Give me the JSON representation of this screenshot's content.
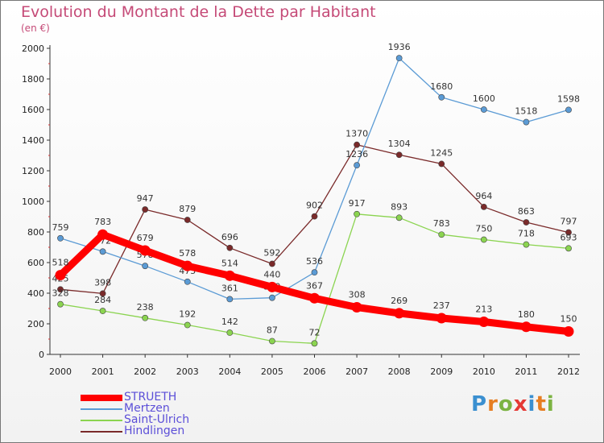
{
  "header": {
    "title": "Evolution du Montant de la Dette par Habitant",
    "unit": "(en €)"
  },
  "brand": {
    "letters": [
      "P",
      "r",
      "o",
      "x",
      "i",
      "t",
      "i"
    ],
    "colors": [
      "#3a8fd0",
      "#e67e22",
      "#7cb342",
      "#e53935",
      "#3a8fd0",
      "#e67e22",
      "#7cb342"
    ]
  },
  "chart_data": {
    "type": "line",
    "x": [
      2000,
      2001,
      2002,
      2003,
      2004,
      2005,
      2006,
      2007,
      2008,
      2009,
      2010,
      2011,
      2012
    ],
    "ylim": [
      0,
      2000
    ],
    "yticks": [
      0,
      200,
      400,
      600,
      800,
      1000,
      1200,
      1400,
      1600,
      1800,
      2000
    ],
    "grid": false,
    "legend": "bottom-left",
    "series": [
      {
        "name": "Hindlingen",
        "color": "#7a2a2a",
        "values": [
          425,
          398,
          947,
          879,
          696,
          592,
          902,
          1370,
          1304,
          1245,
          964,
          863,
          797
        ]
      },
      {
        "name": "Saint-Ulrich",
        "color": "#8bd450",
        "values": [
          328,
          284,
          238,
          192,
          142,
          87,
          72,
          917,
          893,
          783,
          750,
          718,
          693
        ]
      },
      {
        "name": "Mertzen",
        "color": "#5b9bd5",
        "values": [
          759,
          672,
          578,
          475,
          361,
          370,
          536,
          1236,
          1936,
          1680,
          1600,
          1518,
          1598
        ]
      },
      {
        "name": "STRUETH",
        "color": "#ff0000",
        "values": [
          518,
          783,
          679,
          578,
          514,
          440,
          367,
          308,
          269,
          237,
          213,
          180,
          150
        ]
      }
    ],
    "legend_order": [
      "STRUETH",
      "Mertzen",
      "Saint-Ulrich",
      "Hindlingen"
    ]
  }
}
